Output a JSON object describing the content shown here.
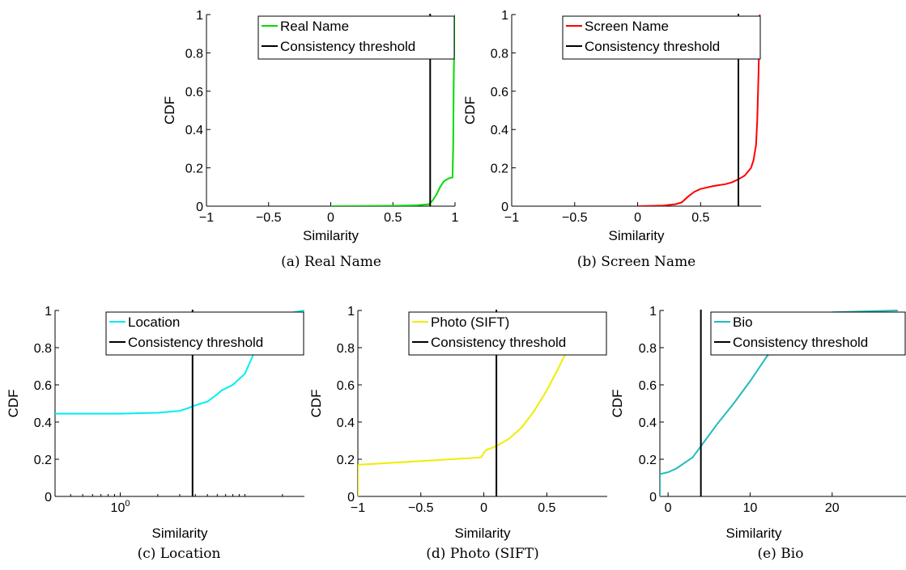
{
  "chart_data": [
    {
      "type": "line",
      "caption": "(a) Real Name",
      "xlabel": "Similarity",
      "ylabel": "CDF",
      "xscale": "linear",
      "xlim": [
        -1,
        1
      ],
      "ylim": [
        0,
        1
      ],
      "xticks": [
        {
          "v": -1,
          "label": "−1"
        },
        {
          "v": -0.5,
          "label": "−0.5"
        },
        {
          "v": 0,
          "label": "0"
        },
        {
          "v": 0.5,
          "label": "0.5"
        },
        {
          "v": 1,
          "label": "1"
        }
      ],
      "yticks": [
        {
          "v": 0,
          "label": "0"
        },
        {
          "v": 0.2,
          "label": "0.2"
        },
        {
          "v": 0.4,
          "label": "0.4"
        },
        {
          "v": 0.6,
          "label": "0.6"
        },
        {
          "v": 0.8,
          "label": "0.8"
        },
        {
          "v": 1,
          "label": "1"
        }
      ],
      "legend_position": "top-right",
      "series": [
        {
          "name": "Real Name",
          "color": "#00dd00",
          "x": [
            0,
            0.5,
            0.7,
            0.79,
            0.82,
            0.85,
            0.88,
            0.91,
            0.95,
            0.98,
            0.985,
            0.99,
            1.0
          ],
          "y": [
            0,
            0.002,
            0.005,
            0.01,
            0.03,
            0.06,
            0.1,
            0.13,
            0.145,
            0.15,
            0.3,
            0.7,
            1.0
          ]
        }
      ],
      "threshold": {
        "name": "Consistency threshold",
        "x": 0.8,
        "color": "#000000"
      }
    },
    {
      "type": "line",
      "caption": "(b) Screen Name",
      "xlabel": "Similarity",
      "ylabel": "CDF",
      "xscale": "linear",
      "xlim": [
        -1,
        0.98
      ],
      "ylim": [
        0,
        1
      ],
      "xticks": [
        {
          "v": -1,
          "label": "−1"
        },
        {
          "v": -0.5,
          "label": "−0.5"
        },
        {
          "v": 0,
          "label": "0"
        },
        {
          "v": 0.5,
          "label": "0.5"
        }
      ],
      "yticks": [
        {
          "v": 0,
          "label": "0"
        },
        {
          "v": 0.2,
          "label": "0.2"
        },
        {
          "v": 0.4,
          "label": "0.4"
        },
        {
          "v": 0.6,
          "label": "0.6"
        },
        {
          "v": 0.8,
          "label": "0.8"
        },
        {
          "v": 1,
          "label": "1"
        }
      ],
      "legend_position": "top-right",
      "series": [
        {
          "name": "Screen Name",
          "color": "#ff0000",
          "x": [
            0,
            0.2,
            0.3,
            0.35,
            0.4,
            0.45,
            0.5,
            0.6,
            0.7,
            0.75,
            0.8,
            0.85,
            0.9,
            0.92,
            0.94,
            0.95,
            0.96,
            0.97
          ],
          "y": [
            0,
            0.003,
            0.01,
            0.02,
            0.05,
            0.075,
            0.09,
            0.105,
            0.115,
            0.125,
            0.14,
            0.16,
            0.2,
            0.24,
            0.32,
            0.45,
            0.7,
            1.0
          ]
        }
      ],
      "threshold": {
        "name": "Consistency threshold",
        "x": 0.8,
        "color": "#000000"
      }
    },
    {
      "type": "line",
      "caption": "(c) Location",
      "xlabel": "Similarity",
      "ylabel": "CDF",
      "xscale": "log",
      "xlim": [
        0.3,
        30
      ],
      "ylim": [
        0,
        1
      ],
      "xticks": [
        {
          "v": 1,
          "label": "10",
          "exp": "0"
        }
      ],
      "yticks": [
        {
          "v": 0,
          "label": "0"
        },
        {
          "v": 0.2,
          "label": "0.2"
        },
        {
          "v": 0.4,
          "label": "0.4"
        },
        {
          "v": 0.6,
          "label": "0.6"
        },
        {
          "v": 0.8,
          "label": "0.8"
        },
        {
          "v": 1,
          "label": "1"
        }
      ],
      "legend_position": "top-right",
      "series": [
        {
          "name": "Location",
          "color": "#00eeee",
          "x": [
            0.3,
            1,
            2,
            3,
            3.5,
            4,
            5,
            6,
            6.5,
            8,
            10,
            12,
            15,
            20,
            30
          ],
          "y": [
            0.445,
            0.445,
            0.45,
            0.46,
            0.475,
            0.49,
            0.51,
            0.55,
            0.57,
            0.6,
            0.66,
            0.78,
            0.92,
            0.98,
            1.0
          ]
        }
      ],
      "threshold": {
        "name": "Consistency threshold",
        "x": 3.8,
        "color": "#000000"
      }
    },
    {
      "type": "line",
      "caption": "(d) Photo (SIFT)",
      "xlabel": "Similarity",
      "ylabel": "CDF",
      "xscale": "linear",
      "xlim": [
        -1,
        0.98
      ],
      "ylim": [
        0,
        1
      ],
      "xticks": [
        {
          "v": -1,
          "label": "−1"
        },
        {
          "v": -0.5,
          "label": "−0.5"
        },
        {
          "v": 0,
          "label": "0"
        },
        {
          "v": 0.5,
          "label": "0.5"
        }
      ],
      "yticks": [
        {
          "v": 0,
          "label": "0"
        },
        {
          "v": 0.2,
          "label": "0.2"
        },
        {
          "v": 0.4,
          "label": "0.4"
        },
        {
          "v": 0.6,
          "label": "0.6"
        },
        {
          "v": 0.8,
          "label": "0.8"
        },
        {
          "v": 1,
          "label": "1"
        }
      ],
      "legend_position": "top-right",
      "series": [
        {
          "name": "Photo (SIFT)",
          "color": "#eeee00",
          "x": [
            -1,
            -1,
            -0.5,
            -0.02,
            0.0,
            0.02,
            0.1,
            0.2,
            0.3,
            0.4,
            0.5,
            0.6,
            0.7,
            0.8
          ],
          "y": [
            0,
            0.17,
            0.19,
            0.21,
            0.235,
            0.25,
            0.27,
            0.31,
            0.37,
            0.46,
            0.57,
            0.7,
            0.84,
            0.93
          ]
        }
      ],
      "threshold": {
        "name": "Consistency threshold",
        "x": 0.1,
        "color": "#000000"
      }
    },
    {
      "type": "line",
      "caption": "(e) Bio",
      "xlabel": "Similarity",
      "ylabel": "CDF",
      "xscale": "linear",
      "xlim": [
        -1,
        29
      ],
      "ylim": [
        0,
        1
      ],
      "xticks": [
        {
          "v": 0,
          "label": "0"
        },
        {
          "v": 10,
          "label": "10"
        },
        {
          "v": 20,
          "label": "20"
        }
      ],
      "yticks": [
        {
          "v": 0,
          "label": "0"
        },
        {
          "v": 0.2,
          "label": "0.2"
        },
        {
          "v": 0.4,
          "label": "0.4"
        },
        {
          "v": 0.6,
          "label": "0.6"
        },
        {
          "v": 0.8,
          "label": "0.8"
        },
        {
          "v": 1,
          "label": "1"
        }
      ],
      "legend_position": "top-right",
      "series": [
        {
          "name": "Bio",
          "color": "#22bbbb",
          "x": [
            -1,
            -1,
            0,
            1,
            2,
            3,
            4,
            6,
            8,
            10,
            12,
            14,
            16,
            18,
            20,
            24,
            28
          ],
          "y": [
            0,
            0.12,
            0.13,
            0.15,
            0.18,
            0.21,
            0.27,
            0.39,
            0.5,
            0.62,
            0.75,
            0.86,
            0.93,
            0.97,
            0.99,
            0.995,
            1.0
          ]
        }
      ],
      "threshold": {
        "name": "Consistency threshold",
        "x": 4,
        "color": "#000000"
      }
    }
  ]
}
